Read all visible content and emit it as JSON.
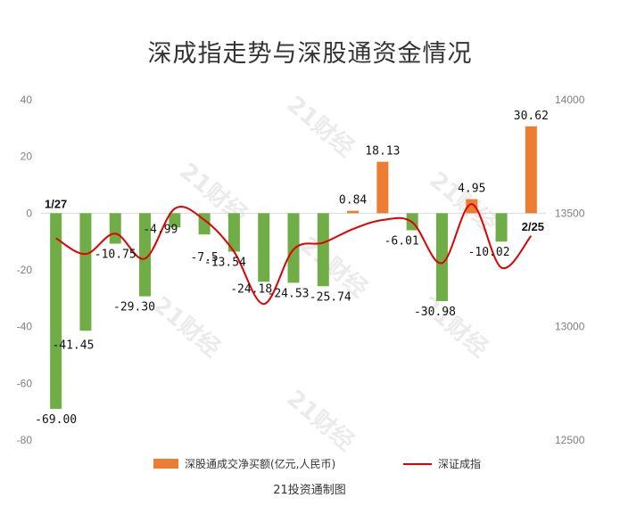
{
  "chart_data": {
    "type": "bar+line",
    "title": "深成指走势与深股通资金情况",
    "left_axis": {
      "ylim": [
        -80,
        40
      ],
      "ticks": [
        "40",
        "20",
        "0",
        "-20",
        "-40",
        "-60",
        "-80"
      ]
    },
    "right_axis": {
      "ylim": [
        12500,
        14000
      ],
      "ticks": [
        "14000",
        "13500",
        "13000",
        "12500"
      ]
    },
    "bar_series": {
      "name": "深股通成交净买额(亿元,人民币)",
      "labels": [
        "-69.00",
        "-41.45",
        "-10.75",
        "-29.30",
        "-4.99",
        "-7.5",
        "-13.54",
        "-24.18",
        "-24.53",
        "-25.74",
        "0.84",
        "18.13",
        "-6.01",
        "-30.98",
        "4.95",
        "-10.02",
        "30.62"
      ],
      "values": [
        -69.0,
        -41.45,
        -10.75,
        -29.3,
        -4.99,
        -7.5,
        -13.54,
        -24.18,
        -24.53,
        -25.74,
        0.84,
        18.13,
        -6.01,
        -30.98,
        4.95,
        -10.02,
        30.62
      ]
    },
    "line_series": {
      "name": "深证成指",
      "values": [
        13390,
        13320,
        13410,
        13300,
        13520,
        13470,
        13330,
        13100,
        13340,
        13370,
        13430,
        13470,
        13460,
        13280,
        13540,
        13260,
        13400
      ]
    },
    "annotations": {
      "start": "1/27",
      "end": "2/25"
    },
    "colors": {
      "positive": "#ed7d31",
      "negative": "#70ad47",
      "line": "#e00000",
      "axis": "#d9d9d9"
    },
    "legend_position": "bottom",
    "grid": false
  },
  "source": "21投资通制图",
  "watermark": "21财经"
}
